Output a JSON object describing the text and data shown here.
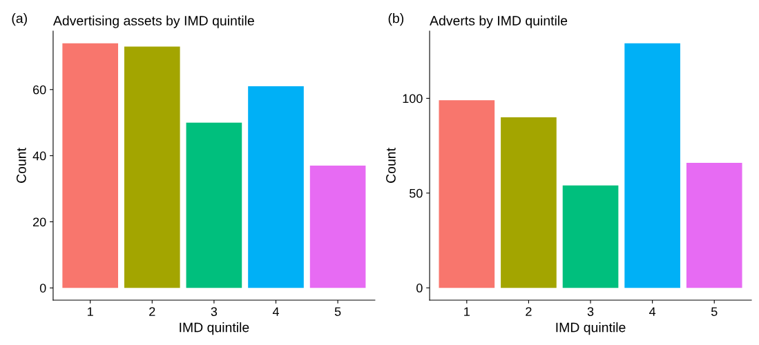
{
  "chart_data": [
    {
      "type": "bar",
      "title": "Advertising assets by IMD quintile",
      "xlabel": "IMD quintile",
      "ylabel": "Count",
      "annotations": [
        "(a)"
      ],
      "categories": [
        "1",
        "2",
        "3",
        "4",
        "5"
      ],
      "values": [
        74,
        73,
        50,
        61,
        37
      ],
      "colors": [
        "#f8766d",
        "#a3a500",
        "#00bf7d",
        "#00b0f6",
        "#e76bf3"
      ],
      "ylim": [
        -3.7,
        77.7
      ],
      "yticks": [
        0,
        20,
        40,
        60
      ],
      "grid": false,
      "legend": false
    },
    {
      "type": "bar",
      "title": "Adverts by IMD quintile",
      "xlabel": "IMD quintile",
      "ylabel": "Count",
      "annotations": [
        "(b)"
      ],
      "categories": [
        "1",
        "2",
        "3",
        "4",
        "5"
      ],
      "values": [
        99,
        90,
        54,
        129,
        66
      ],
      "colors": [
        "#f8766d",
        "#a3a500",
        "#00bf7d",
        "#00b0f6",
        "#e76bf3"
      ],
      "ylim": [
        -6.5,
        135.5
      ],
      "yticks": [
        0,
        50,
        100
      ],
      "grid": false,
      "legend": false
    }
  ]
}
